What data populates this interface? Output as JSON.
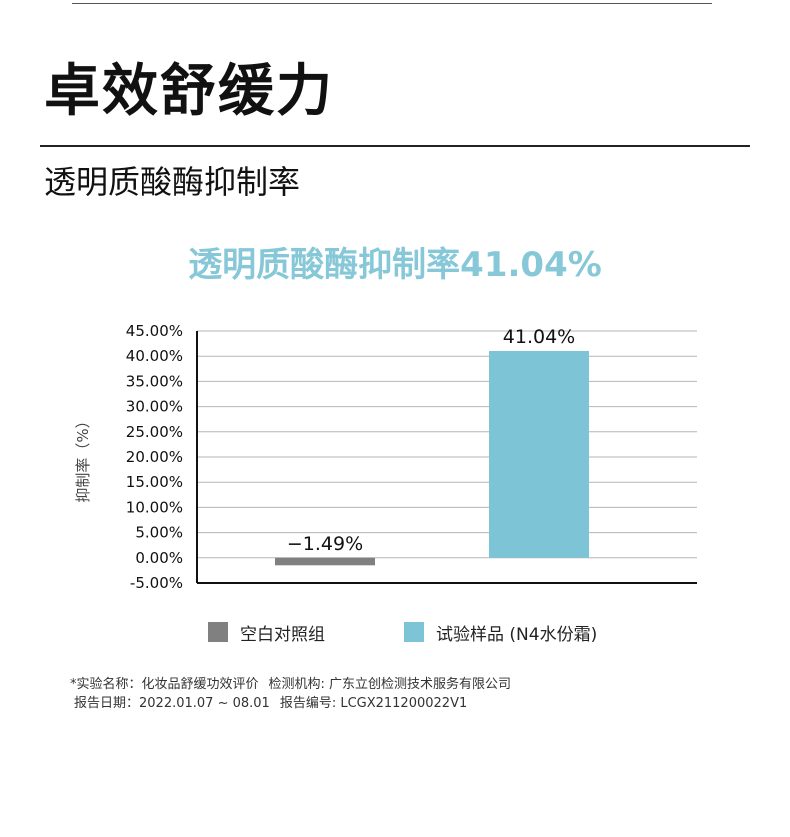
{
  "page": {
    "title": "卓效舒缓力",
    "subtitle": "透明质酸酶抑制率",
    "chart_heading": "透明质酸酶抑制率41.04%",
    "footnote": {
      "line1_a": "*实验名称：化妆品舒缓功效评价",
      "line1_b": "检测机构: 广东立创检测技术服务有限公司",
      "line2_a": "报告日期：2022.01.07 ~ 08.01",
      "line2_b": "报告编号: LCGX211200022V1"
    }
  },
  "chart_data": {
    "type": "bar",
    "ylabel": "抑制率（%）",
    "ylim": [
      -5,
      45
    ],
    "yticks": [
      "45.00%",
      "40.00%",
      "35.00%",
      "30.00%",
      "25.00%",
      "20.00%",
      "15.00%",
      "10.00%",
      "5.00%",
      "0.00%",
      "-5.00%"
    ],
    "ytick_values": [
      45,
      40,
      35,
      30,
      25,
      20,
      15,
      10,
      5,
      0,
      -5
    ],
    "grid": true,
    "legend_position": "bottom",
    "series": [
      {
        "name": "空白对照组",
        "value": -1.49,
        "label": "−1.49%",
        "color": "#808080"
      },
      {
        "name": "试验样品 (N4水份霜)",
        "value": 41.04,
        "label": "41.04%",
        "color": "#7cc4d6"
      }
    ]
  }
}
